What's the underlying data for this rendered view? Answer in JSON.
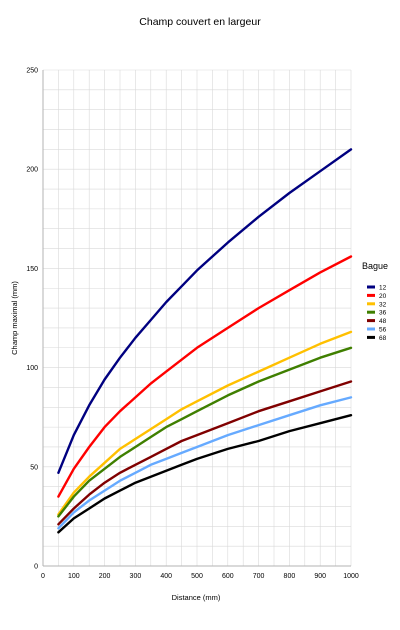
{
  "chart_data": {
    "type": "line",
    "title": "Champ couvert en largeur",
    "xlabel": "Distance (mm)",
    "ylabel": "Champ maximal (mm)",
    "xlim": [
      0,
      1000
    ],
    "ylim": [
      0,
      250
    ],
    "x_ticks": [
      0,
      100,
      200,
      300,
      400,
      500,
      600,
      700,
      800,
      900,
      1000
    ],
    "y_ticks": [
      0,
      50,
      100,
      150,
      200,
      250
    ],
    "grid": true,
    "legend": {
      "title": "Bague",
      "position": "right"
    },
    "x": [
      50,
      100,
      150,
      200,
      250,
      300,
      350,
      400,
      450,
      500,
      600,
      700,
      800,
      900,
      1000
    ],
    "series": [
      {
        "name": "12",
        "color": "#000080",
        "values": [
          47,
          66,
          81,
          94,
          105,
          115,
          124,
          133,
          141,
          149,
          163,
          176,
          188,
          199,
          210
        ]
      },
      {
        "name": "20",
        "color": "#ff0000",
        "values": [
          35,
          49,
          60,
          70,
          78,
          85,
          92,
          98,
          104,
          110,
          120,
          130,
          139,
          148,
          156
        ]
      },
      {
        "name": "32",
        "color": "#ffc000",
        "values": [
          26,
          37,
          45,
          52,
          59,
          64,
          69,
          74,
          79,
          83,
          91,
          98,
          105,
          112,
          118
        ]
      },
      {
        "name": "36",
        "color": "#3f7f00",
        "values": [
          25,
          35,
          43,
          49,
          55,
          60,
          65,
          70,
          74,
          78,
          86,
          93,
          99,
          105,
          110
        ]
      },
      {
        "name": "48",
        "color": "#800000",
        "values": [
          21,
          29,
          36,
          42,
          47,
          51,
          55,
          59,
          63,
          66,
          72,
          78,
          83,
          88,
          93
        ]
      },
      {
        "name": "56",
        "color": "#66aaff",
        "values": [
          19,
          27,
          33,
          38,
          43,
          47,
          51,
          54,
          57,
          60,
          66,
          71,
          76,
          81,
          85
        ]
      },
      {
        "name": "68",
        "color": "#000000",
        "values": [
          17,
          24,
          29,
          34,
          38,
          42,
          45,
          48,
          51,
          54,
          59,
          63,
          68,
          72,
          76
        ]
      }
    ]
  }
}
